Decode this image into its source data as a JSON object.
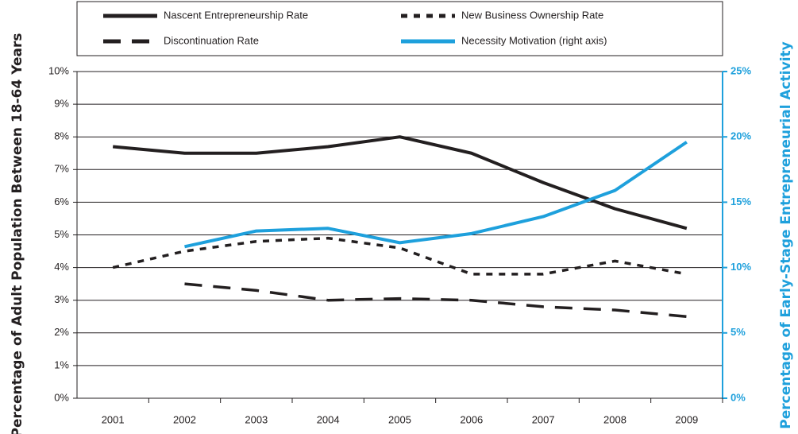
{
  "chart_data": {
    "type": "line",
    "categories": [
      "2001",
      "2002",
      "2003",
      "2004",
      "2005",
      "2006",
      "2007",
      "2008",
      "2009"
    ],
    "series": [
      {
        "name": "Nascent Entrepreneurship Rate",
        "color": "#231f20",
        "style": "solid",
        "values": [
          7.7,
          7.5,
          7.5,
          7.7,
          8.0,
          7.5,
          6.6,
          5.8,
          5.2
        ]
      },
      {
        "name": "New Business Ownership Rate",
        "color": "#231f20",
        "style": "dotted",
        "values": [
          4.0,
          4.5,
          4.8,
          4.9,
          4.6,
          3.8,
          3.8,
          4.2,
          3.8
        ]
      },
      {
        "name": "Discontinuation Rate",
        "color": "#231f20",
        "style": "dashed",
        "values": [
          null,
          3.5,
          3.3,
          3.0,
          3.05,
          3.0,
          2.8,
          2.7,
          2.5
        ]
      },
      {
        "name": "Necessity Motivation (right axis)",
        "color": "#1ea0dc",
        "style": "solid",
        "axis": "y2",
        "values": [
          null,
          11.6,
          12.8,
          13.0,
          11.9,
          12.6,
          13.9,
          15.9,
          19.6
        ]
      }
    ],
    "ylabel": "Percentage of Adult Population Between 18-64 Years",
    "y2label": "Percentage of Early-Stage Entrepreneurial Activity",
    "ylim": [
      0,
      10
    ],
    "yticks": [
      {
        "value": 0,
        "label": "0%"
      },
      {
        "value": 1,
        "label": "1%"
      },
      {
        "value": 2,
        "label": "2%"
      },
      {
        "value": 3,
        "label": "3%"
      },
      {
        "value": 4,
        "label": "4%"
      },
      {
        "value": 5,
        "label": "5%"
      },
      {
        "value": 6,
        "label": "6%"
      },
      {
        "value": 7,
        "label": "7%"
      },
      {
        "value": 8,
        "label": "8%"
      },
      {
        "value": 9,
        "label": "9%"
      },
      {
        "value": 10,
        "label": "10%"
      }
    ],
    "y2lim": [
      0,
      25
    ],
    "y2ticks": [
      {
        "value": 0,
        "label": "0%"
      },
      {
        "value": 5,
        "label": "5%"
      },
      {
        "value": 10,
        "label": "10%"
      },
      {
        "value": 15,
        "label": "15%"
      },
      {
        "value": 20,
        "label": "20%"
      },
      {
        "value": 25,
        "label": "25%"
      }
    ],
    "grid": true,
    "legend": "top"
  }
}
